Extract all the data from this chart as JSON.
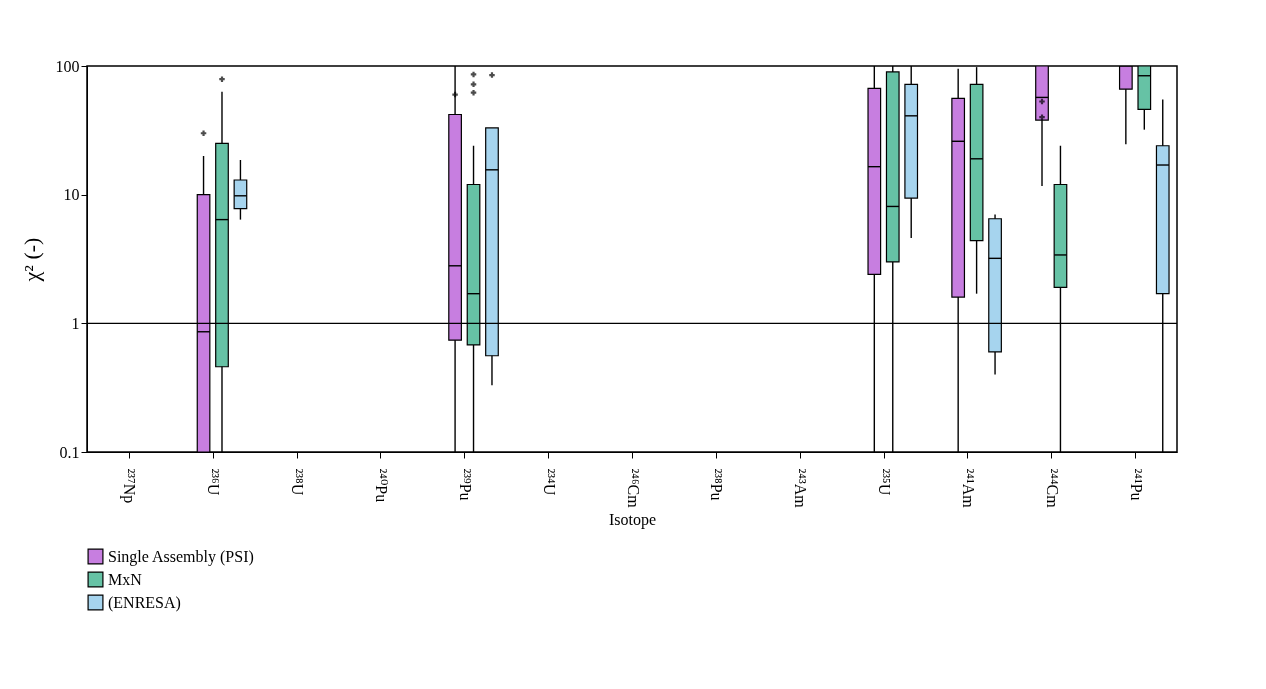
{
  "chart_data": {
    "type": "box",
    "xlabel": "Isotope",
    "ylabel": "χ² (-)",
    "categories": [
      "²³⁷Np",
      "²³⁶U",
      "²³⁸U",
      "²⁴⁰Pu",
      "²³⁹Pu",
      "²³⁴U",
      "²⁴⁶Cm",
      "²³⁸Pu",
      "²⁴³Am",
      "²³⁵U",
      "²⁴¹Am",
      "²⁴⁴Cm",
      "²⁴¹Pu"
    ],
    "log": true,
    "ylim": [
      0.1,
      100
    ],
    "yticks": [
      0.1,
      1,
      10,
      100
    ],
    "grid": false,
    "legend": "bottom",
    "ref_lines": [
      {
        "axis": "y",
        "value": 1
      }
    ],
    "series": [
      {
        "name": "Single Assembly (PSI)",
        "color": "#c77ee0",
        "boxes": [
          null,
          {
            "low": 0.1,
            "q1": 0.1,
            "median": 0.86,
            "q3": 10,
            "high": 20,
            "outliers": [
              30
            ]
          },
          null,
          null,
          {
            "low": 0.1,
            "q1": 0.74,
            "median": 2.8,
            "q3": 42,
            "high": 100,
            "outliers": [
              60
            ]
          },
          null,
          null,
          null,
          null,
          {
            "low": 0.1,
            "q1": 2.4,
            "median": 16.5,
            "q3": 67,
            "high": 100
          },
          {
            "low": 0.1,
            "q1": 1.6,
            "median": 26,
            "q3": 56,
            "high": 95
          },
          {
            "low": 11.7,
            "q1": 38,
            "median": 57,
            "q3": 100,
            "high": 100,
            "outliers": [
              53,
              40
            ]
          },
          {
            "low": 24.6,
            "q1": 66,
            "median": 100,
            "q3": 100,
            "high": 100
          }
        ]
      },
      {
        "name": "MxN",
        "color": "#66c2a5",
        "boxes": [
          null,
          {
            "low": 0.1,
            "q1": 0.46,
            "median": 6.4,
            "q3": 25,
            "high": 63,
            "outliers": [
              79
            ]
          },
          null,
          null,
          {
            "low": 0.1,
            "q1": 0.68,
            "median": 1.7,
            "q3": 12,
            "high": 24,
            "outliers": [
              86,
              72,
              62
            ]
          },
          null,
          null,
          null,
          null,
          {
            "low": 0.1,
            "q1": 3,
            "median": 8.1,
            "q3": 90,
            "high": 100
          },
          {
            "low": 1.7,
            "q1": 4.4,
            "median": 19,
            "q3": 72,
            "high": 98
          },
          {
            "low": 0.1,
            "q1": 1.9,
            "median": 3.4,
            "q3": 12,
            "high": 24
          },
          {
            "low": 32,
            "q1": 46,
            "median": 84,
            "q3": 100,
            "high": 100
          }
        ]
      },
      {
        "name": "(ENRESA)",
        "color": "#a6d4ee",
        "boxes": [
          null,
          {
            "low": 6.4,
            "q1": 7.8,
            "median": 9.8,
            "q3": 13,
            "high": 18.6
          },
          null,
          null,
          {
            "low": 0.33,
            "q1": 0.56,
            "median": 15.6,
            "q3": 33,
            "high": 33,
            "outliers": [
              85
            ]
          },
          null,
          null,
          null,
          null,
          {
            "low": 4.6,
            "q1": 9.4,
            "median": 41,
            "q3": 72,
            "high": 100
          },
          {
            "low": 0.4,
            "q1": 0.6,
            "median": 3.2,
            "q3": 6.5,
            "high": 7
          },
          null,
          {
            "low": 0.1,
            "q1": 1.7,
            "median": 17,
            "q3": 24,
            "high": 55
          }
        ]
      }
    ]
  }
}
